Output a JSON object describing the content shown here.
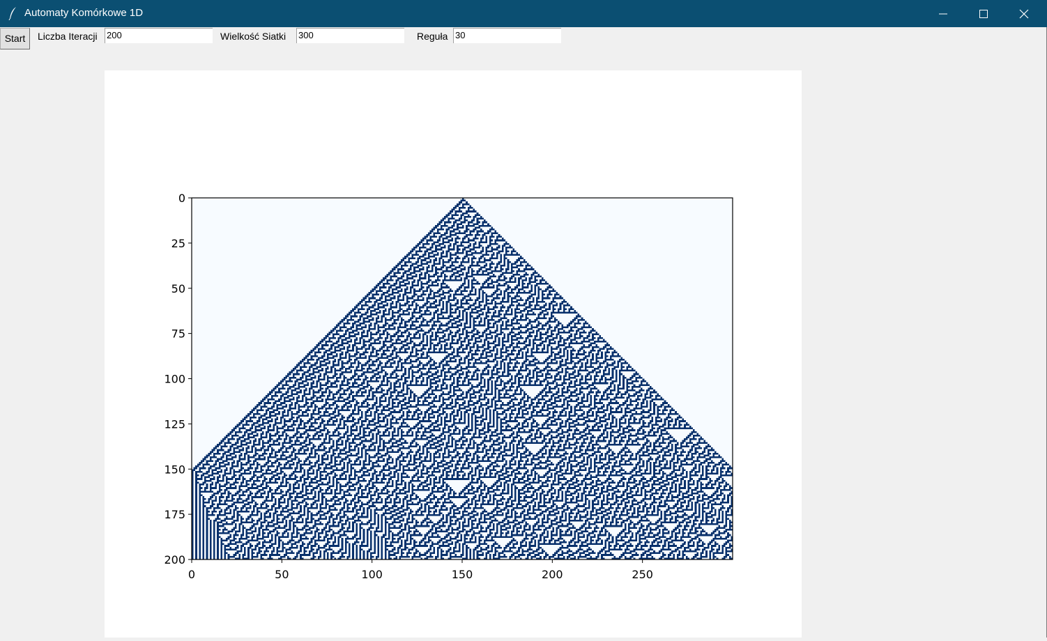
{
  "window": {
    "title": "Automaty Komórkowe 1D",
    "titlebar_color": "#0b4f72",
    "icon": "feather-icon",
    "controls": [
      "minimize-icon",
      "maximize-icon",
      "close-icon"
    ]
  },
  "toolbar": {
    "start_label": "Start",
    "iterations_label": "Liczba Iteracji",
    "iterations_value": "200",
    "grid_size_label": "Wielkość Siatki",
    "grid_size_value": "300",
    "rule_label": "Reguła",
    "rule_value": "30"
  },
  "chart_data": {
    "type": "heatmap",
    "description_source": "elementary cellular automaton image (imshow, Blues colormap)",
    "rule": 30,
    "width": 300,
    "iterations": 200,
    "initial_live_cell": 150,
    "x_ticks": [
      0,
      50,
      100,
      150,
      200,
      250
    ],
    "y_ticks": [
      0,
      25,
      50,
      75,
      100,
      125,
      150,
      175,
      200
    ],
    "xlim": [
      0,
      300
    ],
    "ylim": [
      200,
      0
    ],
    "colors": {
      "on": "#08306b",
      "off": "#f7fbff"
    }
  }
}
